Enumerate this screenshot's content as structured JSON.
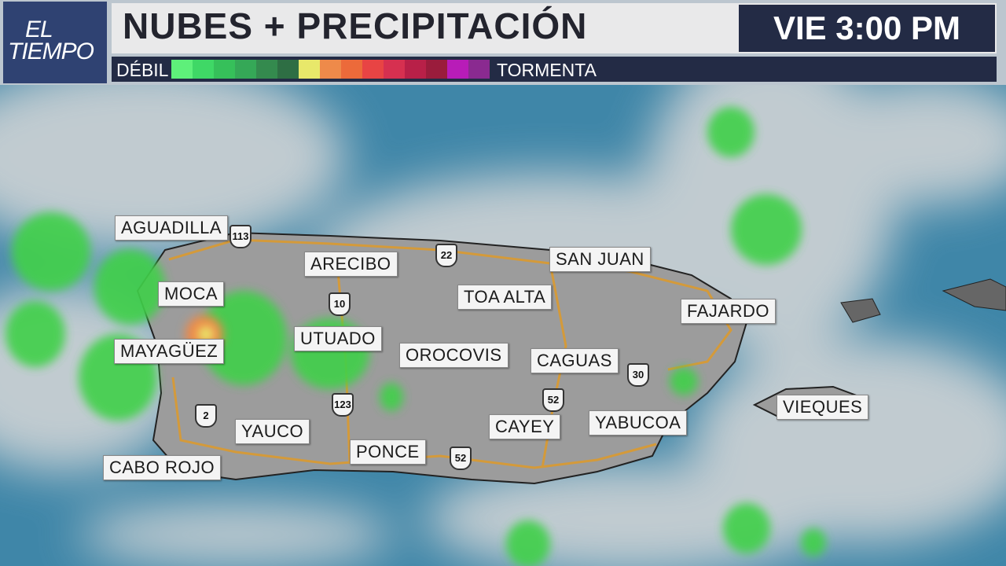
{
  "logo": {
    "line1": "EL",
    "line2": "TIEMPO"
  },
  "header": {
    "title": "NUBES + PRECIPITACIÓN",
    "time": "VIE 3:00 PM"
  },
  "legend": {
    "weak_label": "DÉBIL",
    "storm_label": "TORMENTA",
    "colors": [
      "#5ef07a",
      "#3fd866",
      "#36c05a",
      "#35a857",
      "#348a4e",
      "#2e6e44",
      "#e8e86a",
      "#ee8a4a",
      "#ec6a3a",
      "#e84444",
      "#d63050",
      "#b82048",
      "#9a1c3c",
      "#b81cb8",
      "#8a2a90"
    ]
  },
  "map": {
    "cities": [
      "AGUADILLA",
      "ARECIBO",
      "SAN JUAN",
      "MOCA",
      "TOA ALTA",
      "FAJARDO",
      "UTUADO",
      "MAYAGÜEZ",
      "OROCOVIS",
      "CAGUAS",
      "VIEQUES",
      "CAYEY",
      "YABUCOA",
      "YAUCO",
      "PONCE",
      "CABO ROJO"
    ],
    "routes": [
      "113",
      "22",
      "10",
      "30",
      "52",
      "123",
      "2",
      "52"
    ],
    "colors": {
      "ocean": "#3f7f9f",
      "land": "#9a9a9a",
      "road": "#d49a3a",
      "rain": "#3fd04a"
    }
  }
}
